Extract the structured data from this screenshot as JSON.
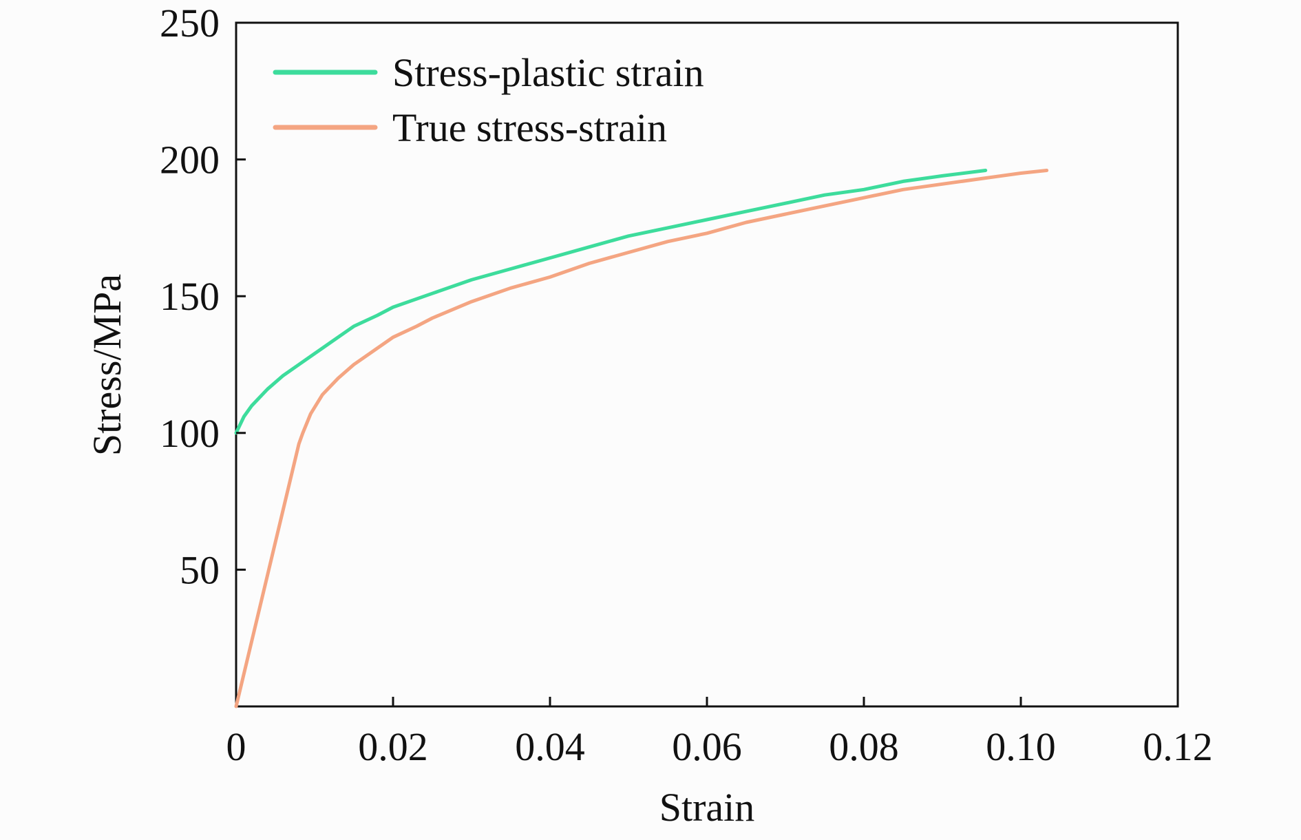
{
  "chart_data": {
    "type": "line",
    "title": "",
    "xlabel": "Strain",
    "ylabel": "Stress/MPa",
    "xlim": [
      0,
      0.12
    ],
    "ylim": [
      0,
      250
    ],
    "x_ticks": [
      {
        "value": 0,
        "label": "0"
      },
      {
        "value": 0.02,
        "label": "0.02"
      },
      {
        "value": 0.04,
        "label": "0.04"
      },
      {
        "value": 0.06,
        "label": "0.06"
      },
      {
        "value": 0.08,
        "label": "0.08"
      },
      {
        "value": 0.1,
        "label": "0.10"
      },
      {
        "value": 0.12,
        "label": "0.12"
      }
    ],
    "y_ticks": [
      {
        "value": 50,
        "label": "50"
      },
      {
        "value": 100,
        "label": "100"
      },
      {
        "value": 150,
        "label": "150"
      },
      {
        "value": 200,
        "label": "200"
      },
      {
        "value": 250,
        "label": "250"
      }
    ],
    "grid": false,
    "legend_position": "top-left",
    "series": [
      {
        "name": "Stress-plastic strain",
        "color": "#3ddc9c",
        "x": [
          0,
          0.001,
          0.002,
          0.004,
          0.006,
          0.008,
          0.01,
          0.012,
          0.015,
          0.018,
          0.02,
          0.025,
          0.03,
          0.035,
          0.04,
          0.045,
          0.05,
          0.055,
          0.06,
          0.065,
          0.07,
          0.075,
          0.08,
          0.085,
          0.09,
          0.0955
        ],
        "y": [
          100,
          106,
          110,
          116,
          121,
          125,
          129,
          133,
          139,
          143,
          146,
          151,
          156,
          160,
          164,
          168,
          172,
          175,
          178,
          181,
          184,
          187,
          189,
          192,
          194,
          196
        ]
      },
      {
        "name": "True stress-strain",
        "color": "#f4a582",
        "x": [
          0,
          0.002,
          0.004,
          0.006,
          0.008,
          0.0085,
          0.0095,
          0.011,
          0.013,
          0.015,
          0.018,
          0.02,
          0.023,
          0.025,
          0.03,
          0.035,
          0.04,
          0.045,
          0.05,
          0.055,
          0.06,
          0.065,
          0.07,
          0.075,
          0.08,
          0.085,
          0.09,
          0.095,
          0.1,
          0.1033
        ],
        "y": [
          0,
          24,
          48,
          72,
          96,
          100,
          107,
          114,
          120,
          125,
          131,
          135,
          139,
          142,
          148,
          153,
          157,
          162,
          166,
          170,
          173,
          177,
          180,
          183,
          186,
          189,
          191,
          193,
          195,
          196
        ]
      }
    ]
  }
}
